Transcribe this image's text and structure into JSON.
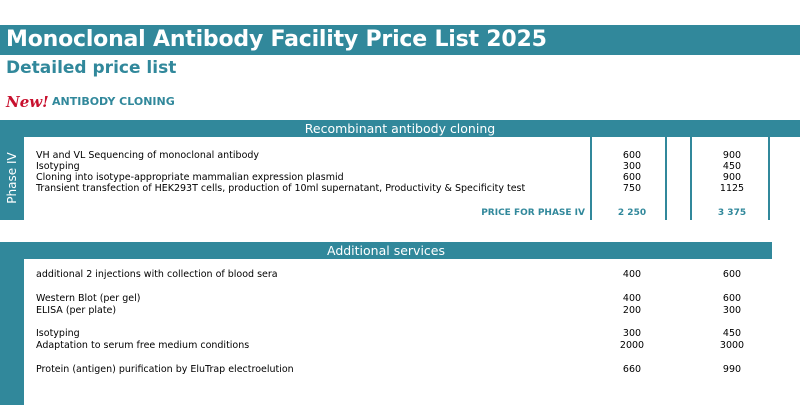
{
  "header": {
    "title": "Monoclonal Antibody Facility Price List 2025",
    "subtitle": "Detailed price list",
    "new_badge": "New!",
    "section_label": "ANTIBODY CLONING"
  },
  "section1": {
    "title": "Recombinant antibody cloning",
    "phase_label": "Phase IV",
    "rows": [
      {
        "desc": "VH and VL Sequencing of monoclonal antibody",
        "price1": "600",
        "price2": "900"
      },
      {
        "desc": "Isotyping",
        "price1": "300",
        "price2": "450"
      },
      {
        "desc": "Cloning into isotype-appropriate mammalian expression plasmid",
        "price1": "600",
        "price2": "900"
      },
      {
        "desc": "Transient transfection of HEK293T cells, production of 10ml supernatant, Productivity & Specificity test",
        "price1": "750",
        "price2": "1125"
      }
    ],
    "total_label": "PRICE FOR PHASE IV",
    "total1": "2 250",
    "total2": "3 375"
  },
  "section2": {
    "title": "Additional services",
    "rows": [
      {
        "desc": "additional 2 injections with collection of blood sera",
        "price1": "400",
        "price2": "600"
      },
      {
        "desc": "Western Blot (per gel)",
        "price1": "400",
        "price2": "600"
      },
      {
        "desc": "ELISA (per plate)",
        "price1": "200",
        "price2": "300"
      },
      {
        "desc": "Isotyping",
        "price1": "300",
        "price2": "450"
      },
      {
        "desc": "Adaptation to serum free medium conditions",
        "price1": "2000",
        "price2": "3000"
      },
      {
        "desc": "Protein (antigen) purification by EluTrap electroelution",
        "price1": "660",
        "price2": "990"
      }
    ]
  },
  "colors": {
    "accent": "#31889b",
    "new_badge": "#c8102e"
  }
}
